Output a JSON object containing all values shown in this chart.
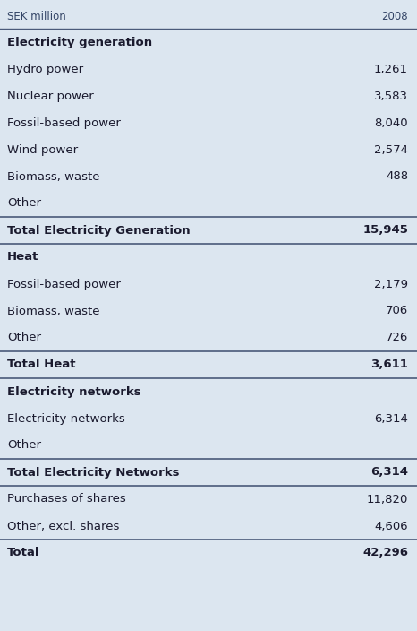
{
  "header": [
    "SEK million",
    "2008"
  ],
  "rows": [
    {
      "label": "Electricity generation",
      "value": "",
      "bold": true,
      "border_top": false,
      "border_bottom": false
    },
    {
      "label": "Hydro power",
      "value": "1,261",
      "bold": false,
      "border_top": false,
      "border_bottom": false
    },
    {
      "label": "Nuclear power",
      "value": "3,583",
      "bold": false,
      "border_top": false,
      "border_bottom": false
    },
    {
      "label": "Fossil-based power",
      "value": "8,040",
      "bold": false,
      "border_top": false,
      "border_bottom": false
    },
    {
      "label": "Wind power",
      "value": "2,574",
      "bold": false,
      "border_top": false,
      "border_bottom": false
    },
    {
      "label": "Biomass, waste",
      "value": "488",
      "bold": false,
      "border_top": false,
      "border_bottom": false
    },
    {
      "label": "Other",
      "value": "–",
      "bold": false,
      "border_top": false,
      "border_bottom": false
    },
    {
      "label": "Total Electricity Generation",
      "value": "15,945",
      "bold": true,
      "border_top": true,
      "border_bottom": true
    },
    {
      "label": "Heat",
      "value": "",
      "bold": true,
      "border_top": false,
      "border_bottom": false
    },
    {
      "label": "Fossil-based power",
      "value": "2,179",
      "bold": false,
      "border_top": false,
      "border_bottom": false
    },
    {
      "label": "Biomass, waste",
      "value": "706",
      "bold": false,
      "border_top": false,
      "border_bottom": false
    },
    {
      "label": "Other",
      "value": "726",
      "bold": false,
      "border_top": false,
      "border_bottom": false
    },
    {
      "label": "Total Heat",
      "value": "3,611",
      "bold": true,
      "border_top": true,
      "border_bottom": true
    },
    {
      "label": "Electricity networks",
      "value": "",
      "bold": true,
      "border_top": false,
      "border_bottom": false
    },
    {
      "label": "Electricity networks",
      "value": "6,314",
      "bold": false,
      "border_top": false,
      "border_bottom": false
    },
    {
      "label": "Other",
      "value": "–",
      "bold": false,
      "border_top": false,
      "border_bottom": false
    },
    {
      "label": "Total Electricity Networks",
      "value": "6,314",
      "bold": true,
      "border_top": true,
      "border_bottom": true
    },
    {
      "label": "Purchases of shares",
      "value": "11,820",
      "bold": false,
      "border_top": false,
      "border_bottom": false
    },
    {
      "label": "Other, excl. shares",
      "value": "4,606",
      "bold": false,
      "border_top": false,
      "border_bottom": false
    },
    {
      "label": "Total",
      "value": "42,296",
      "bold": true,
      "border_top": true,
      "border_bottom": false
    }
  ],
  "bg_color": "#dce6f0",
  "text_color": "#1a1a2e",
  "border_color": "#4a5a7a",
  "header_font_size": 8.5,
  "font_size": 9.5,
  "fig_width": 4.66,
  "fig_height": 7.04,
  "dpi": 100
}
